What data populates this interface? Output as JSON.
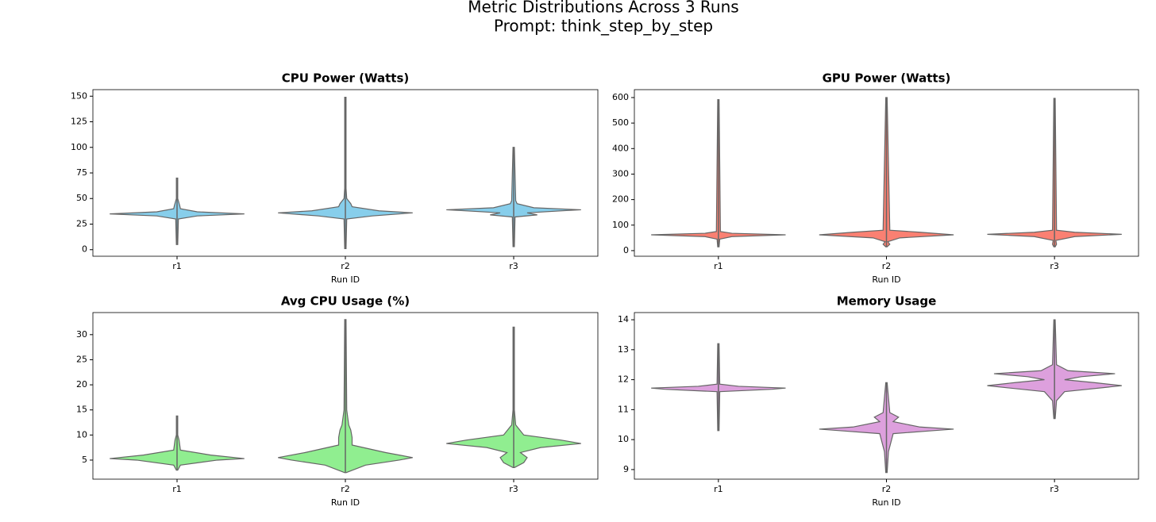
{
  "figure": {
    "title": "Metric Distributions Across 3 Runs",
    "subtitle": "Prompt: think_step_by_step"
  },
  "chart_data": [
    {
      "type": "violin",
      "title": "CPU Power (Watts)",
      "xlabel": "Run ID",
      "categories": [
        "r1",
        "r2",
        "r3"
      ],
      "color": "#87ceeb",
      "ylim": [
        -6.4,
        156.4
      ],
      "yticks": [
        0,
        25,
        50,
        75,
        100,
        125,
        150
      ],
      "violins": [
        {
          "values": [
            5,
            30,
            33,
            35,
            37,
            40,
            43,
            50,
            70
          ],
          "widths": [
            0.01,
            0.02,
            0.3,
            1.0,
            0.3,
            0.05,
            0.04,
            0.01,
            0.01
          ]
        },
        {
          "values": [
            1,
            30,
            33,
            36,
            38,
            42,
            45,
            50,
            60,
            149
          ],
          "widths": [
            0.01,
            0.02,
            0.4,
            1.0,
            0.5,
            0.1,
            0.08,
            0.02,
            0.01,
            0.01
          ]
        },
        {
          "values": [
            3,
            32,
            34,
            36,
            38,
            39,
            41,
            45,
            48,
            100
          ],
          "widths": [
            0.01,
            0.02,
            0.35,
            0.2,
            0.7,
            1.0,
            0.3,
            0.05,
            0.03,
            0.01
          ]
        }
      ]
    },
    {
      "type": "violin",
      "title": "GPU Power (Watts)",
      "xlabel": "Run ID",
      "categories": [
        "r1",
        "r2",
        "r3"
      ],
      "color": "#fa8072",
      "ylim": [
        -22,
        631
      ],
      "yticks": [
        0,
        100,
        200,
        300,
        400,
        500,
        600
      ],
      "violins": [
        {
          "values": [
            15,
            45,
            55,
            62,
            68,
            75,
            592
          ],
          "widths": [
            0.01,
            0.02,
            0.2,
            1.0,
            0.2,
            0.03,
            0.01
          ]
        },
        {
          "values": [
            15,
            25,
            35,
            50,
            62,
            72,
            80,
            600
          ],
          "widths": [
            0.01,
            0.05,
            0.02,
            0.2,
            1.0,
            0.5,
            0.05,
            0.01
          ]
        },
        {
          "values": [
            15,
            25,
            40,
            55,
            64,
            72,
            80,
            597
          ],
          "widths": [
            0.01,
            0.03,
            0.02,
            0.3,
            1.0,
            0.3,
            0.03,
            0.01
          ]
        }
      ]
    },
    {
      "type": "violin",
      "title": "Avg CPU Usage (%)",
      "xlabel": "Run ID",
      "categories": [
        "r1",
        "r2",
        "r3"
      ],
      "color": "#90ee90",
      "ylim": [
        1.2,
        34.4
      ],
      "yticks": [
        5,
        10,
        15,
        20,
        25,
        30
      ],
      "violins": [
        {
          "values": [
            3,
            4,
            5,
            5.3,
            6,
            7,
            9,
            10,
            13.8
          ],
          "widths": [
            0.01,
            0.05,
            0.6,
            1.0,
            0.5,
            0.05,
            0.03,
            0.01,
            0.01
          ]
        },
        {
          "values": [
            2.5,
            4,
            5,
            5.5,
            6.5,
            8,
            9.5,
            11,
            12,
            15,
            33
          ],
          "widths": [
            0.01,
            0.3,
            0.8,
            1.0,
            0.6,
            0.1,
            0.1,
            0.08,
            0.05,
            0.02,
            0.01
          ]
        },
        {
          "values": [
            3.5,
            4.5,
            5.5,
            6.5,
            7.5,
            8.3,
            9,
            10,
            12,
            15,
            31.5
          ],
          "widths": [
            0.01,
            0.15,
            0.2,
            0.1,
            0.4,
            1.0,
            0.7,
            0.15,
            0.03,
            0.01,
            0.01
          ]
        }
      ]
    },
    {
      "type": "violin",
      "title": "Memory Usage",
      "xlabel": "Run ID",
      "categories": [
        "r1",
        "r2",
        "r3"
      ],
      "color": "#dda0dd",
      "ylim": [
        8.68,
        14.24
      ],
      "yticks": [
        9,
        10,
        11,
        12,
        13,
        14
      ],
      "violins": [
        {
          "values": [
            10.3,
            11.6,
            11.68,
            11.72,
            11.78,
            11.85,
            13.2
          ],
          "widths": [
            0.01,
            0.02,
            0.8,
            1.0,
            0.3,
            0.02,
            0.01
          ]
        },
        {
          "values": [
            8.9,
            9.6,
            10.2,
            10.3,
            10.35,
            10.42,
            10.6,
            10.75,
            10.9,
            11.9
          ],
          "widths": [
            0.01,
            0.03,
            0.1,
            0.7,
            1.0,
            0.5,
            0.1,
            0.18,
            0.05,
            0.01
          ]
        },
        {
          "values": [
            10.7,
            11.3,
            11.6,
            11.8,
            11.9,
            12.0,
            12.1,
            12.2,
            12.3,
            12.5,
            14
          ],
          "widths": [
            0.01,
            0.03,
            0.15,
            1.0,
            0.6,
            0.15,
            0.4,
            0.9,
            0.2,
            0.03,
            0.01
          ]
        }
      ]
    }
  ]
}
